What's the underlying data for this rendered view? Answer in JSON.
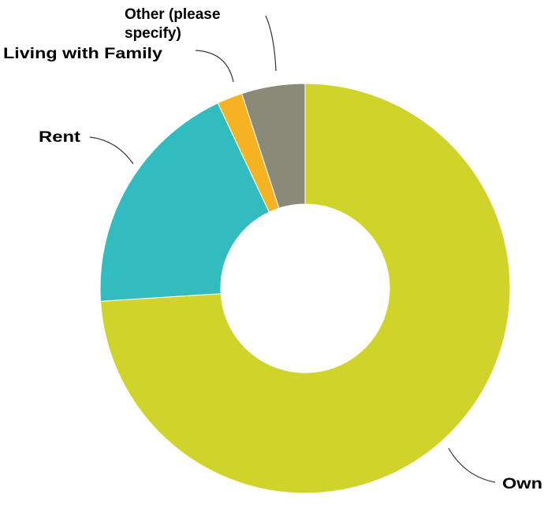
{
  "chart_data": {
    "type": "pie",
    "variant": "donut",
    "legend": "none",
    "slices": [
      {
        "label": "Own",
        "value": 74.0,
        "color": "#d0d42a"
      },
      {
        "label": "Rent",
        "value": 19.0,
        "color": "#33bcc0"
      },
      {
        "label": "Living with Family",
        "value": 2.0,
        "color": "#f5b223"
      },
      {
        "label": "Other (please specify)",
        "value": 5.0,
        "color": "#8a8a78"
      }
    ]
  }
}
